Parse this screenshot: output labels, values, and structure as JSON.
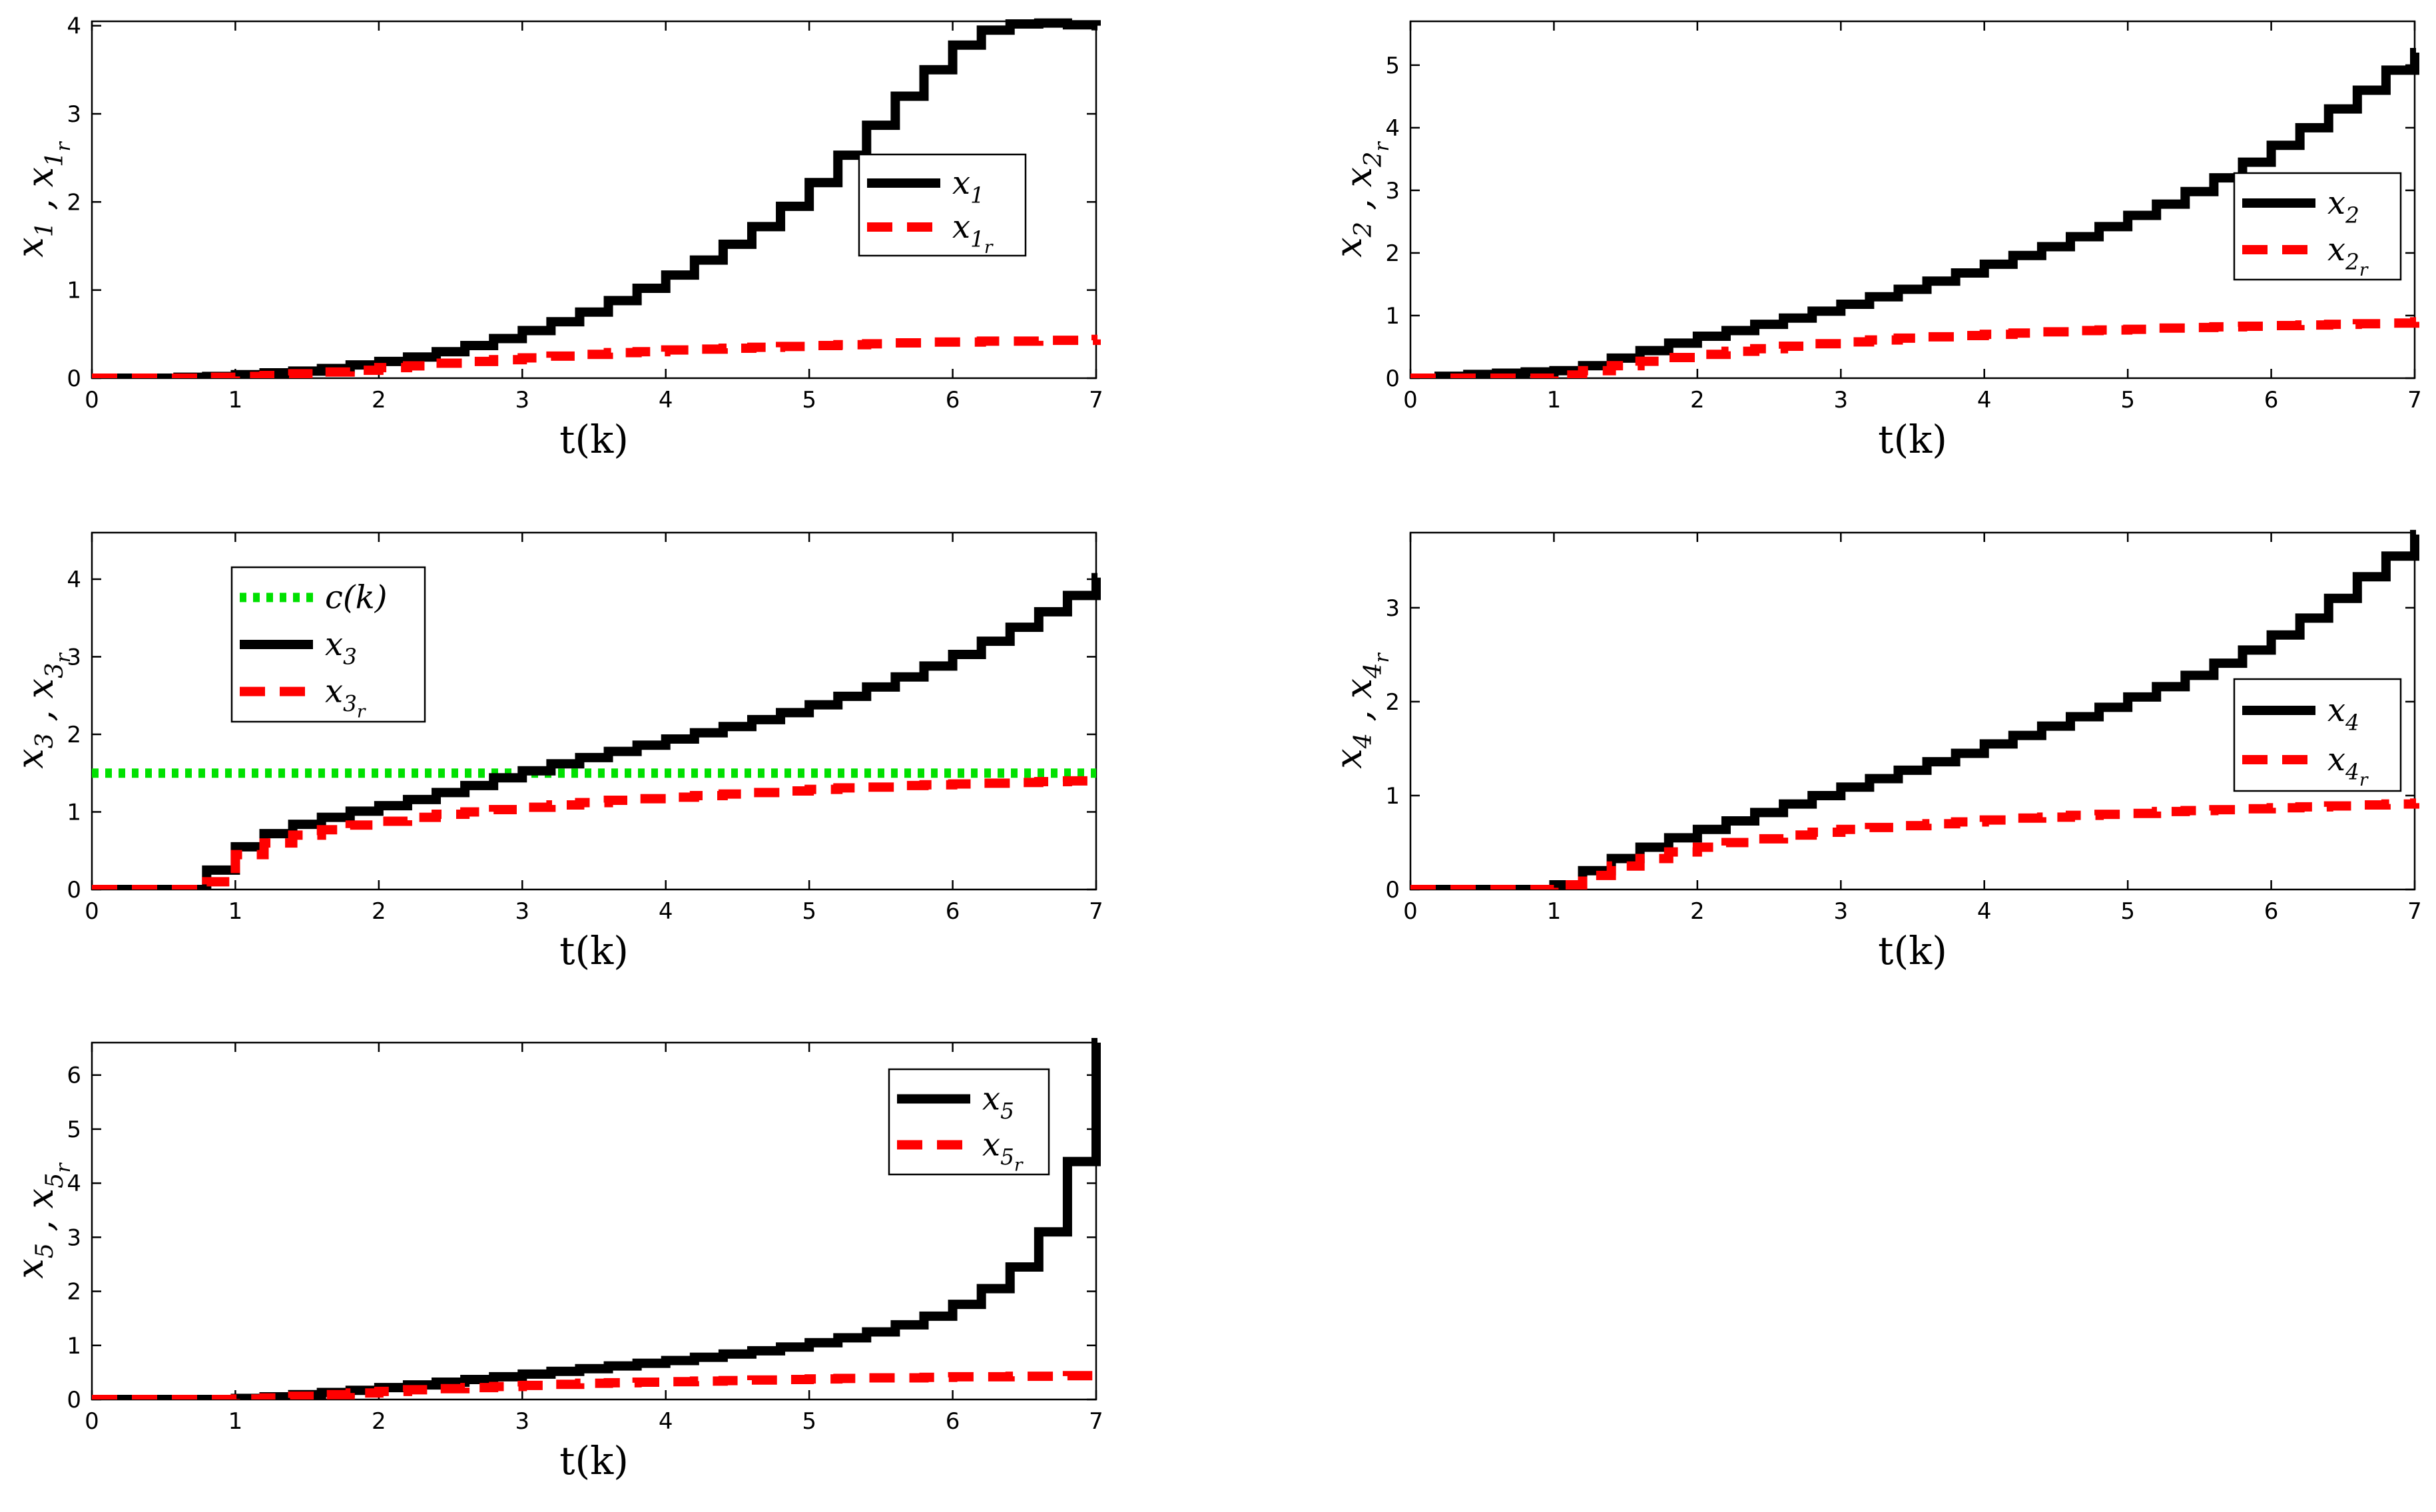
{
  "figure": {
    "colors": {
      "state": "#000000",
      "reference": "#ff0000",
      "constraint": "#00e000"
    }
  },
  "chart_data": [
    {
      "id": "x1",
      "type": "line",
      "xlabel": "t(k)",
      "ylabel": "x_1 , x_{1_r}",
      "xlim": [
        0,
        7
      ],
      "ylim": [
        0,
        4.05
      ],
      "xticks": [
        "0",
        "1",
        "2",
        "3",
        "4",
        "5",
        "6",
        "7"
      ],
      "yticks": [
        "0",
        "1",
        "2",
        "3",
        "4"
      ],
      "legend": {
        "location": "right",
        "entries": [
          "x_1",
          "x_{1_r}"
        ]
      },
      "series": [
        {
          "name": "x_1",
          "style": "solid",
          "color": "#000000",
          "x": [
            0,
            0.2,
            0.4,
            0.6,
            0.8,
            1.0,
            1.2,
            1.4,
            1.6,
            1.8,
            2.0,
            2.2,
            2.4,
            2.6,
            2.8,
            3.0,
            3.2,
            3.4,
            3.6,
            3.8,
            4.0,
            4.2,
            4.4,
            4.6,
            4.8,
            5.0,
            5.2,
            5.4,
            5.6,
            5.8,
            6.0,
            6.2,
            6.4,
            6.6,
            6.8,
            7.0
          ],
          "values": [
            0,
            0,
            0,
            0.01,
            0.02,
            0.04,
            0.06,
            0.08,
            0.11,
            0.15,
            0.19,
            0.24,
            0.3,
            0.37,
            0.45,
            0.54,
            0.64,
            0.75,
            0.88,
            1.02,
            1.17,
            1.34,
            1.52,
            1.72,
            1.95,
            2.22,
            2.53,
            2.87,
            3.2,
            3.5,
            3.78,
            3.95,
            4.02,
            4.03,
            4.01,
            4.0
          ]
        },
        {
          "name": "x_{1_r}",
          "style": "dashed",
          "color": "#ff0000",
          "x": [
            0,
            0.2,
            0.4,
            0.6,
            0.8,
            1.0,
            1.2,
            1.4,
            1.6,
            1.8,
            2.0,
            2.2,
            2.4,
            2.6,
            2.8,
            3.0,
            3.2,
            3.4,
            3.6,
            3.8,
            4.0,
            4.2,
            4.4,
            4.6,
            4.8,
            5.0,
            5.2,
            5.4,
            5.6,
            5.8,
            6.0,
            6.2,
            6.4,
            6.6,
            6.8,
            7.0
          ],
          "values": [
            0,
            0,
            0,
            0,
            0.01,
            0.02,
            0.03,
            0.05,
            0.07,
            0.09,
            0.12,
            0.14,
            0.17,
            0.19,
            0.21,
            0.23,
            0.25,
            0.27,
            0.29,
            0.3,
            0.32,
            0.33,
            0.34,
            0.35,
            0.36,
            0.37,
            0.38,
            0.39,
            0.4,
            0.41,
            0.41,
            0.42,
            0.42,
            0.43,
            0.43,
            0.44
          ]
        }
      ]
    },
    {
      "id": "x2",
      "type": "line",
      "xlabel": "t(k)",
      "ylabel": "x_2 , x_{2_r}",
      "xlim": [
        0,
        7
      ],
      "ylim": [
        0,
        5.7
      ],
      "xticks": [
        "0",
        "1",
        "2",
        "3",
        "4",
        "5",
        "6",
        "7"
      ],
      "yticks": [
        "0",
        "1",
        "2",
        "3",
        "4",
        "5"
      ],
      "legend": {
        "location": "right",
        "entries": [
          "x_2",
          "x_{2_r}"
        ]
      },
      "series": [
        {
          "name": "x_2",
          "style": "solid",
          "color": "#000000",
          "x": [
            0,
            0.2,
            0.4,
            0.6,
            0.8,
            1.0,
            1.2,
            1.4,
            1.6,
            1.8,
            2.0,
            2.2,
            2.4,
            2.6,
            2.8,
            3.0,
            3.2,
            3.4,
            3.6,
            3.8,
            4.0,
            4.2,
            4.4,
            4.6,
            4.8,
            5.0,
            5.2,
            5.4,
            5.6,
            5.8,
            6.0,
            6.2,
            6.4,
            6.6,
            6.8,
            7.0
          ],
          "values": [
            0,
            0.03,
            0.06,
            0.08,
            0.1,
            0.12,
            0.2,
            0.32,
            0.44,
            0.56,
            0.67,
            0.76,
            0.86,
            0.96,
            1.07,
            1.18,
            1.3,
            1.42,
            1.55,
            1.68,
            1.82,
            1.96,
            2.1,
            2.26,
            2.42,
            2.6,
            2.78,
            2.98,
            3.2,
            3.45,
            3.72,
            4.0,
            4.3,
            4.6,
            4.92,
            5.2
          ]
        },
        {
          "name": "x_{2_r}",
          "style": "dashed",
          "color": "#ff0000",
          "x": [
            0,
            0.2,
            0.4,
            0.6,
            0.8,
            1.0,
            1.2,
            1.4,
            1.6,
            1.8,
            2.0,
            2.2,
            2.4,
            2.6,
            2.8,
            3.0,
            3.2,
            3.4,
            3.6,
            3.8,
            4.0,
            4.2,
            4.4,
            4.6,
            4.8,
            5.0,
            5.2,
            5.4,
            5.6,
            5.8,
            6.0,
            6.2,
            6.4,
            6.6,
            6.8,
            7.0
          ],
          "values": [
            0,
            0,
            0,
            0,
            0,
            0.05,
            0.12,
            0.2,
            0.27,
            0.33,
            0.38,
            0.43,
            0.47,
            0.51,
            0.55,
            0.58,
            0.61,
            0.64,
            0.66,
            0.68,
            0.7,
            0.72,
            0.74,
            0.76,
            0.77,
            0.78,
            0.8,
            0.81,
            0.82,
            0.83,
            0.84,
            0.85,
            0.86,
            0.87,
            0.88,
            0.9
          ]
        }
      ]
    },
    {
      "id": "x3",
      "type": "line",
      "xlabel": "t(k)",
      "ylabel": "x_3 , x_{3_r}",
      "xlim": [
        0,
        7
      ],
      "ylim": [
        0,
        4.6
      ],
      "xticks": [
        "0",
        "1",
        "2",
        "3",
        "4",
        "5",
        "6",
        "7"
      ],
      "yticks": [
        "0",
        "1",
        "2",
        "3",
        "4"
      ],
      "legend": {
        "location": "top-left",
        "entries": [
          "c(k)",
          "x_3",
          "x_{3_r}"
        ]
      },
      "series": [
        {
          "name": "c(k)",
          "style": "dotted",
          "color": "#00e000",
          "x": [
            0,
            7
          ],
          "values": [
            1.5,
            1.5
          ]
        },
        {
          "name": "x_3",
          "style": "solid",
          "color": "#000000",
          "x": [
            0,
            0.2,
            0.4,
            0.6,
            0.8,
            1.0,
            1.2,
            1.4,
            1.6,
            1.8,
            2.0,
            2.2,
            2.4,
            2.6,
            2.8,
            3.0,
            3.2,
            3.4,
            3.6,
            3.8,
            4.0,
            4.2,
            4.4,
            4.6,
            4.8,
            5.0,
            5.2,
            5.4,
            5.6,
            5.8,
            6.0,
            6.2,
            6.4,
            6.6,
            6.8,
            7.0
          ],
          "values": [
            0,
            0,
            0,
            0,
            0.25,
            0.55,
            0.72,
            0.84,
            0.93,
            1.01,
            1.08,
            1.16,
            1.25,
            1.34,
            1.44,
            1.53,
            1.62,
            1.7,
            1.78,
            1.86,
            1.94,
            2.02,
            2.1,
            2.19,
            2.28,
            2.38,
            2.49,
            2.61,
            2.74,
            2.88,
            3.03,
            3.2,
            3.38,
            3.58,
            3.79,
            4.02
          ]
        },
        {
          "name": "x_{3_r}",
          "style": "dashed",
          "color": "#ff0000",
          "x": [
            0,
            0.2,
            0.4,
            0.6,
            0.8,
            1.0,
            1.2,
            1.4,
            1.6,
            1.8,
            2.0,
            2.2,
            2.4,
            2.6,
            2.8,
            3.0,
            3.2,
            3.4,
            3.6,
            3.8,
            4.0,
            4.2,
            4.4,
            4.6,
            4.8,
            5.0,
            5.2,
            5.4,
            5.6,
            5.8,
            6.0,
            6.2,
            6.4,
            6.6,
            6.8,
            7.0
          ],
          "values": [
            0,
            0,
            0,
            0,
            0.1,
            0.45,
            0.6,
            0.7,
            0.77,
            0.83,
            0.88,
            0.93,
            0.97,
            1.0,
            1.03,
            1.06,
            1.09,
            1.12,
            1.15,
            1.17,
            1.19,
            1.21,
            1.23,
            1.25,
            1.27,
            1.29,
            1.31,
            1.32,
            1.34,
            1.35,
            1.36,
            1.37,
            1.38,
            1.39,
            1.4,
            1.42
          ]
        }
      ]
    },
    {
      "id": "x4",
      "type": "line",
      "xlabel": "t(k)",
      "ylabel": "x_4 , x_{4_r}",
      "xlim": [
        0,
        7
      ],
      "ylim": [
        0,
        3.8
      ],
      "xticks": [
        "0",
        "1",
        "2",
        "3",
        "4",
        "5",
        "6",
        "7"
      ],
      "yticks": [
        "0",
        "1",
        "2",
        "3"
      ],
      "legend": {
        "location": "right",
        "entries": [
          "x_4",
          "x_{4_r}"
        ]
      },
      "series": [
        {
          "name": "x_4",
          "style": "solid",
          "color": "#000000",
          "x": [
            0,
            0.2,
            0.4,
            0.6,
            0.8,
            1.0,
            1.2,
            1.4,
            1.6,
            1.8,
            2.0,
            2.2,
            2.4,
            2.6,
            2.8,
            3.0,
            3.2,
            3.4,
            3.6,
            3.8,
            4.0,
            4.2,
            4.4,
            4.6,
            4.8,
            5.0,
            5.2,
            5.4,
            5.6,
            5.8,
            6.0,
            6.2,
            6.4,
            6.6,
            6.8,
            7.0
          ],
          "values": [
            0,
            0,
            0,
            0,
            0,
            0.05,
            0.2,
            0.33,
            0.45,
            0.55,
            0.64,
            0.73,
            0.82,
            0.91,
            1.0,
            1.09,
            1.18,
            1.27,
            1.36,
            1.45,
            1.55,
            1.64,
            1.74,
            1.84,
            1.94,
            2.05,
            2.16,
            2.28,
            2.41,
            2.55,
            2.71,
            2.89,
            3.1,
            3.33,
            3.55,
            3.78
          ]
        },
        {
          "name": "x_{4_r}",
          "style": "dashed",
          "color": "#ff0000",
          "x": [
            0,
            0.2,
            0.4,
            0.6,
            0.8,
            1.0,
            1.2,
            1.4,
            1.6,
            1.8,
            2.0,
            2.2,
            2.4,
            2.6,
            2.8,
            3.0,
            3.2,
            3.4,
            3.6,
            3.8,
            4.0,
            4.2,
            4.4,
            4.6,
            4.8,
            5.0,
            5.2,
            5.4,
            5.6,
            5.8,
            6.0,
            6.2,
            6.4,
            6.6,
            6.8,
            7.0
          ],
          "values": [
            0,
            0,
            0,
            0,
            0,
            0.05,
            0.15,
            0.25,
            0.33,
            0.4,
            0.45,
            0.5,
            0.54,
            0.58,
            0.61,
            0.64,
            0.66,
            0.68,
            0.7,
            0.72,
            0.74,
            0.76,
            0.77,
            0.79,
            0.8,
            0.81,
            0.83,
            0.84,
            0.85,
            0.86,
            0.87,
            0.88,
            0.89,
            0.9,
            0.91,
            0.92
          ]
        }
      ]
    },
    {
      "id": "x5",
      "type": "line",
      "xlabel": "t(k)",
      "ylabel": "x_5 , x_{5_r}",
      "xlim": [
        0,
        7
      ],
      "ylim": [
        0,
        6.6
      ],
      "xticks": [
        "0",
        "1",
        "2",
        "3",
        "4",
        "5",
        "6",
        "7"
      ],
      "yticks": [
        "0",
        "1",
        "2",
        "3",
        "4",
        "5",
        "6"
      ],
      "legend": {
        "location": "top-right",
        "entries": [
          "x_5",
          "x_{5_r}"
        ]
      },
      "series": [
        {
          "name": "x_5",
          "style": "solid",
          "color": "#000000",
          "x": [
            0,
            0.2,
            0.4,
            0.6,
            0.8,
            1.0,
            1.2,
            1.4,
            1.6,
            1.8,
            2.0,
            2.2,
            2.4,
            2.6,
            2.8,
            3.0,
            3.2,
            3.4,
            3.6,
            3.8,
            4.0,
            4.2,
            4.4,
            4.6,
            4.8,
            5.0,
            5.2,
            5.4,
            5.6,
            5.8,
            6.0,
            6.2,
            6.4,
            6.6,
            6.8,
            7.0
          ],
          "values": [
            0,
            0,
            0,
            0,
            0,
            0.02,
            0.05,
            0.09,
            0.13,
            0.17,
            0.22,
            0.27,
            0.32,
            0.37,
            0.42,
            0.47,
            0.52,
            0.57,
            0.62,
            0.67,
            0.72,
            0.78,
            0.84,
            0.9,
            0.97,
            1.05,
            1.14,
            1.25,
            1.38,
            1.54,
            1.76,
            2.05,
            2.45,
            3.1,
            4.4,
            6.6
          ]
        },
        {
          "name": "x_{5_r}",
          "style": "dashed",
          "color": "#ff0000",
          "x": [
            0,
            0.2,
            0.4,
            0.6,
            0.8,
            1.0,
            1.2,
            1.4,
            1.6,
            1.8,
            2.0,
            2.2,
            2.4,
            2.6,
            2.8,
            3.0,
            3.2,
            3.4,
            3.6,
            3.8,
            4.0,
            4.2,
            4.4,
            4.6,
            4.8,
            5.0,
            5.2,
            5.4,
            5.6,
            5.8,
            6.0,
            6.2,
            6.4,
            6.6,
            6.8,
            7.0
          ],
          "values": [
            0,
            0,
            0,
            0,
            0,
            0.01,
            0.03,
            0.06,
            0.09,
            0.12,
            0.15,
            0.18,
            0.2,
            0.22,
            0.24,
            0.26,
            0.28,
            0.3,
            0.31,
            0.32,
            0.33,
            0.34,
            0.35,
            0.36,
            0.37,
            0.38,
            0.39,
            0.4,
            0.4,
            0.41,
            0.42,
            0.42,
            0.43,
            0.43,
            0.44,
            0.45
          ]
        }
      ]
    }
  ]
}
